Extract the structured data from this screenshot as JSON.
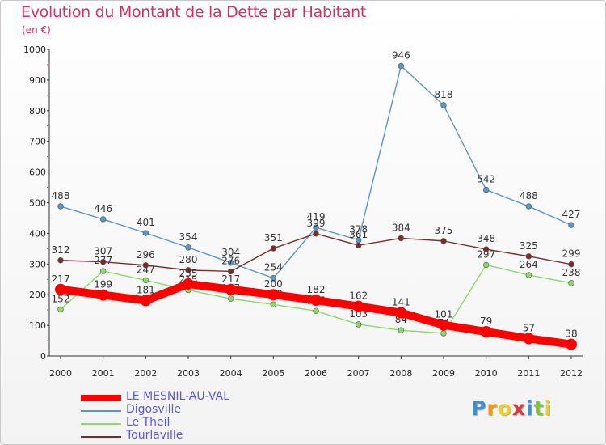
{
  "header": {
    "title": "Evolution du Montant de la Dette par Habitant",
    "subtitle": "(en €)"
  },
  "logo": {
    "text": "Proxiti",
    "letter_colors": [
      "#3a8fd8",
      "#f09a1a",
      "#e8d22a",
      "#d83a3a",
      "#3a8fd8",
      "#80c040",
      "#e8d22a"
    ]
  },
  "chart_data": {
    "type": "line",
    "title": "Evolution du Montant de la Dette par Habitant",
    "subtitle": "(en €)",
    "x": [
      "2000",
      "2001",
      "2002",
      "2003",
      "2004",
      "2005",
      "2006",
      "2007",
      "2008",
      "2009",
      "2010",
      "2011",
      "2012"
    ],
    "ylim": [
      0,
      1000
    ],
    "yticks": [
      0,
      100,
      200,
      300,
      400,
      500,
      600,
      700,
      800,
      900,
      1000
    ],
    "grid": false,
    "legend_position": "bottom-left",
    "series": [
      {
        "name": "LE MESNIL-AU-VAL",
        "color": "#ff0000",
        "values": [
          217,
          199,
          181,
          235,
          217,
          200,
          182,
          162,
          141,
          101,
          79,
          57,
          38
        ]
      },
      {
        "name": "Digosville",
        "color": "#5a96c8",
        "values": [
          488,
          446,
          401,
          354,
          304,
          254,
          419,
          378,
          946,
          818,
          542,
          488,
          427
        ]
      },
      {
        "name": "Le Theil",
        "color": "#8cd96a",
        "values": [
          152,
          277,
          247,
          215,
          187,
          168,
          147,
          103,
          84,
          74,
          297,
          264,
          238
        ]
      },
      {
        "name": "Tourlaville",
        "color": "#7a2c2c",
        "values": [
          312,
          307,
          296,
          280,
          276,
          351,
          399,
          361,
          384,
          375,
          348,
          325,
          299
        ]
      }
    ]
  }
}
